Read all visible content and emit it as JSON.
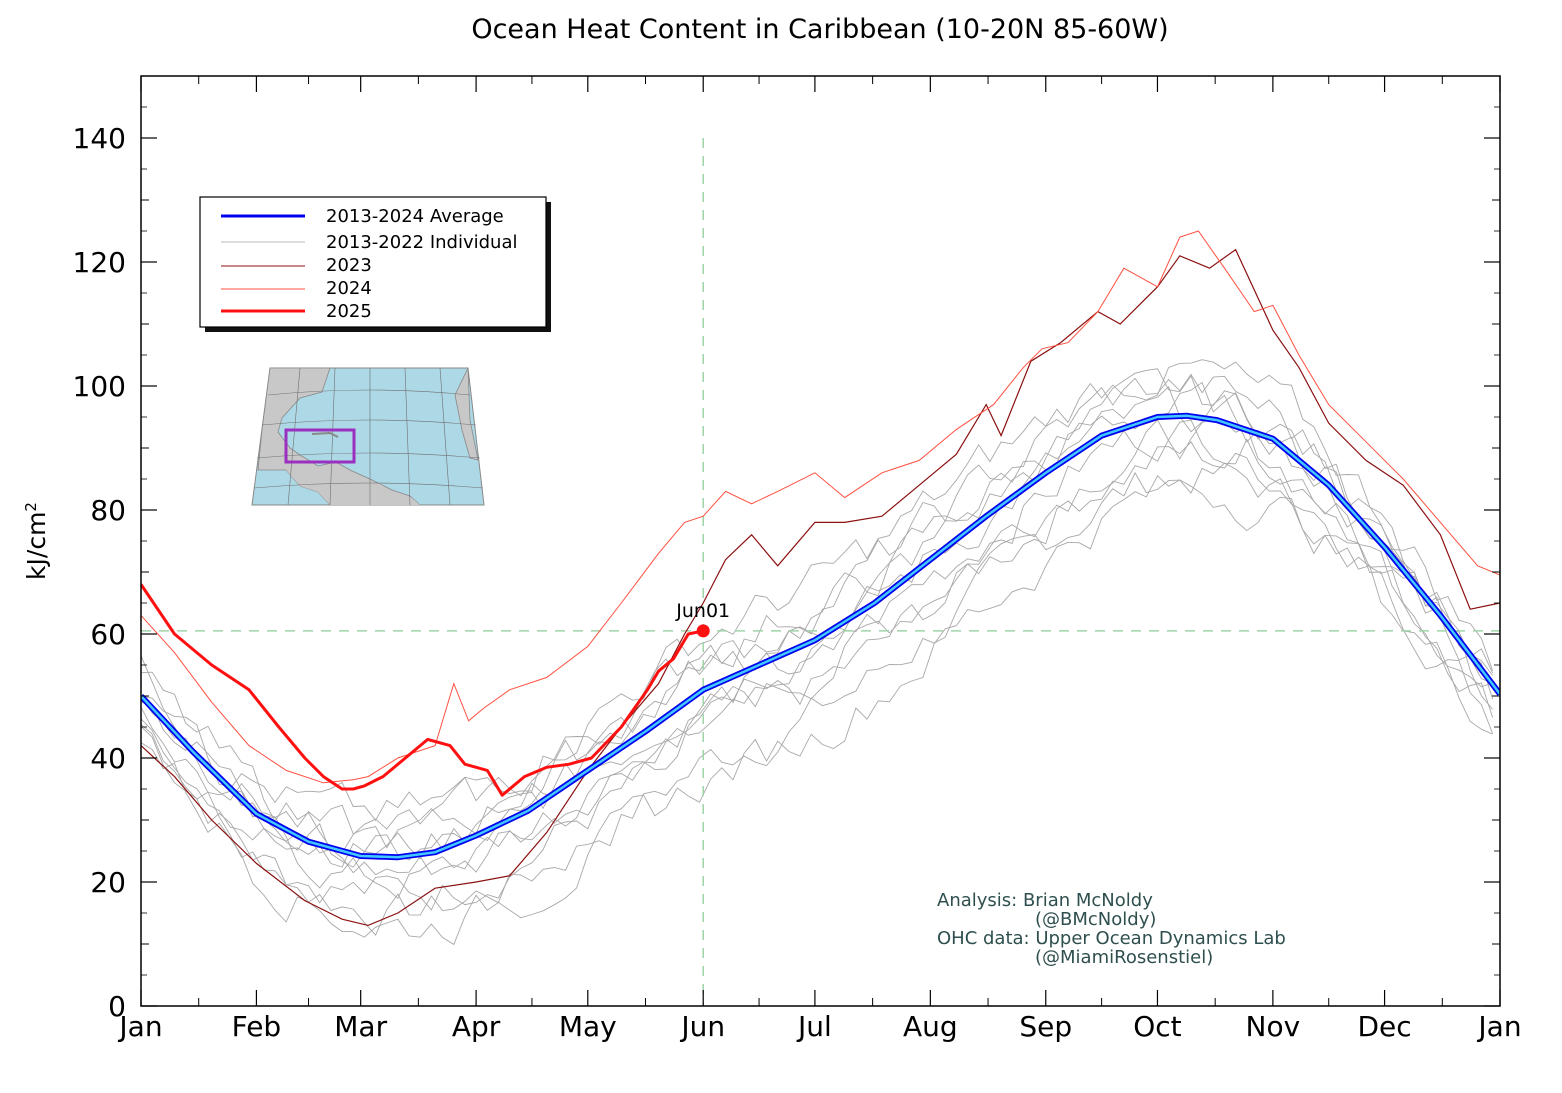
{
  "chart_data": {
    "type": "line",
    "title": "Ocean Heat Content in Caribbean (10-20N 85-60W)",
    "ylabel": "kJ/cm",
    "ylabel_superscript": "2",
    "xlabel": "",
    "ylim": [
      0,
      150
    ],
    "y_ticks": [
      0,
      20,
      40,
      60,
      80,
      100,
      120,
      140
    ],
    "x_ticks": [
      "Jan",
      "Feb",
      "Mar",
      "Apr",
      "May",
      "Jun",
      "Jul",
      "Aug",
      "Sep",
      "Oct",
      "Nov",
      "Dec",
      "Jan"
    ],
    "x_tick_days": [
      1,
      32,
      60,
      91,
      121,
      152,
      182,
      213,
      244,
      274,
      305,
      335,
      366
    ],
    "grid": false,
    "legend_position": "upper-left",
    "legend": [
      {
        "label": "2013-2024 Average",
        "color": "#0000ee"
      },
      {
        "label": "2013-2022 Individual",
        "color": "#bbbbbb"
      },
      {
        "label": "2023",
        "color": "#8b1010"
      },
      {
        "label": "2024",
        "color": "#ff5040"
      },
      {
        "label": "2025",
        "color": "#ff1010"
      }
    ],
    "reference_lines": {
      "vertical_day": 152,
      "horizontal_value": 60.5
    },
    "annotation": {
      "label": "Jun01",
      "day": 152,
      "value": 60.5
    },
    "series": [
      {
        "name": "2013-2024 Average",
        "color": "#0000ee",
        "highlight": "#40c8ff",
        "points": [
          [
            1,
            50
          ],
          [
            15,
            41
          ],
          [
            32,
            31
          ],
          [
            46,
            26.5
          ],
          [
            60,
            24.2
          ],
          [
            70,
            24
          ],
          [
            80,
            24.8
          ],
          [
            91,
            27.5
          ],
          [
            105,
            31.5
          ],
          [
            121,
            38
          ],
          [
            137,
            44.5
          ],
          [
            152,
            51
          ],
          [
            167,
            55
          ],
          [
            182,
            59
          ],
          [
            198,
            65
          ],
          [
            213,
            72
          ],
          [
            228,
            79
          ],
          [
            244,
            86
          ],
          [
            259,
            92
          ],
          [
            274,
            95
          ],
          [
            282,
            95.2
          ],
          [
            290,
            94.5
          ],
          [
            305,
            91.5
          ],
          [
            320,
            84
          ],
          [
            335,
            74
          ],
          [
            350,
            63
          ],
          [
            366,
            50.3
          ]
        ]
      },
      {
        "name": "2023",
        "color": "#8b1010",
        "points": [
          [
            1,
            42
          ],
          [
            10,
            37
          ],
          [
            20,
            30
          ],
          [
            32,
            23
          ],
          [
            45,
            17
          ],
          [
            55,
            14
          ],
          [
            62,
            13
          ],
          [
            70,
            15
          ],
          [
            80,
            19
          ],
          [
            91,
            20
          ],
          [
            100,
            21
          ],
          [
            110,
            28
          ],
          [
            121,
            38
          ],
          [
            130,
            45
          ],
          [
            140,
            52
          ],
          [
            147,
            60
          ],
          [
            152,
            65
          ],
          [
            158,
            72
          ],
          [
            165,
            76
          ],
          [
            172,
            71
          ],
          [
            182,
            78
          ],
          [
            190,
            78
          ],
          [
            200,
            79
          ],
          [
            210,
            84
          ],
          [
            220,
            89
          ],
          [
            228,
            97
          ],
          [
            232,
            92
          ],
          [
            240,
            104
          ],
          [
            248,
            107
          ],
          [
            258,
            112
          ],
          [
            264,
            110
          ],
          [
            274,
            116
          ],
          [
            280,
            121
          ],
          [
            288,
            119
          ],
          [
            295,
            122
          ],
          [
            305,
            109
          ],
          [
            312,
            103
          ],
          [
            320,
            94
          ],
          [
            330,
            88
          ],
          [
            340,
            84
          ],
          [
            350,
            76
          ],
          [
            358,
            64
          ],
          [
            366,
            65
          ]
        ]
      },
      {
        "name": "2024",
        "color": "#ff5040",
        "points": [
          [
            1,
            63
          ],
          [
            10,
            57
          ],
          [
            20,
            49
          ],
          [
            30,
            42
          ],
          [
            40,
            38
          ],
          [
            50,
            36
          ],
          [
            58,
            36.5
          ],
          [
            62,
            37
          ],
          [
            70,
            40
          ],
          [
            80,
            42
          ],
          [
            85,
            52
          ],
          [
            89,
            46
          ],
          [
            93,
            48
          ],
          [
            100,
            51
          ],
          [
            110,
            53
          ],
          [
            121,
            58
          ],
          [
            130,
            65
          ],
          [
            140,
            73
          ],
          [
            147,
            78
          ],
          [
            152,
            79
          ],
          [
            158,
            83
          ],
          [
            165,
            81
          ],
          [
            172,
            83
          ],
          [
            182,
            86
          ],
          [
            190,
            82
          ],
          [
            200,
            86
          ],
          [
            210,
            88
          ],
          [
            220,
            93
          ],
          [
            230,
            97
          ],
          [
            238,
            103
          ],
          [
            243,
            106
          ],
          [
            250,
            107
          ],
          [
            258,
            112
          ],
          [
            265,
            119
          ],
          [
            274,
            116
          ],
          [
            280,
            124
          ],
          [
            285,
            125
          ],
          [
            292,
            119
          ],
          [
            300,
            112
          ],
          [
            305,
            113
          ],
          [
            312,
            105
          ],
          [
            320,
            97
          ],
          [
            330,
            91
          ],
          [
            340,
            85
          ],
          [
            350,
            78
          ],
          [
            360,
            71
          ],
          [
            366,
            69.5
          ]
        ]
      },
      {
        "name": "2025",
        "color": "#ff1010",
        "points": [
          [
            1,
            68
          ],
          [
            10,
            60
          ],
          [
            20,
            55
          ],
          [
            30,
            51
          ],
          [
            38,
            45
          ],
          [
            45,
            40
          ],
          [
            50,
            37
          ],
          [
            55,
            35
          ],
          [
            58,
            35
          ],
          [
            61,
            35.5
          ],
          [
            66,
            37
          ],
          [
            72,
            40
          ],
          [
            78,
            43
          ],
          [
            84,
            42
          ],
          [
            88,
            39
          ],
          [
            94,
            38
          ],
          [
            98,
            34
          ],
          [
            104,
            37
          ],
          [
            110,
            38.5
          ],
          [
            116,
            39
          ],
          [
            122,
            40
          ],
          [
            130,
            45
          ],
          [
            137,
            51
          ],
          [
            140,
            54
          ],
          [
            144,
            56
          ],
          [
            148,
            60
          ],
          [
            152,
            60.5
          ]
        ]
      }
    ]
  },
  "legend_labels": [
    "2013-2024 Average",
    "2013-2022 Individual",
    "2023",
    "2024",
    "2025"
  ],
  "annotation_label": "Jun01",
  "credits": {
    "line1": "Analysis: Brian McNoldy",
    "line2": "(@BMcNoldy)",
    "line3": "OHC data: Upper Ocean Dynamics Lab",
    "line4": "(@MiamiRosenstiel)"
  },
  "inset_map": {
    "description_icon": "caribbean-map-icon",
    "box_color": "#9a30c0",
    "ocean_color": "#add8e6",
    "land_color": "#c8c8c8"
  }
}
